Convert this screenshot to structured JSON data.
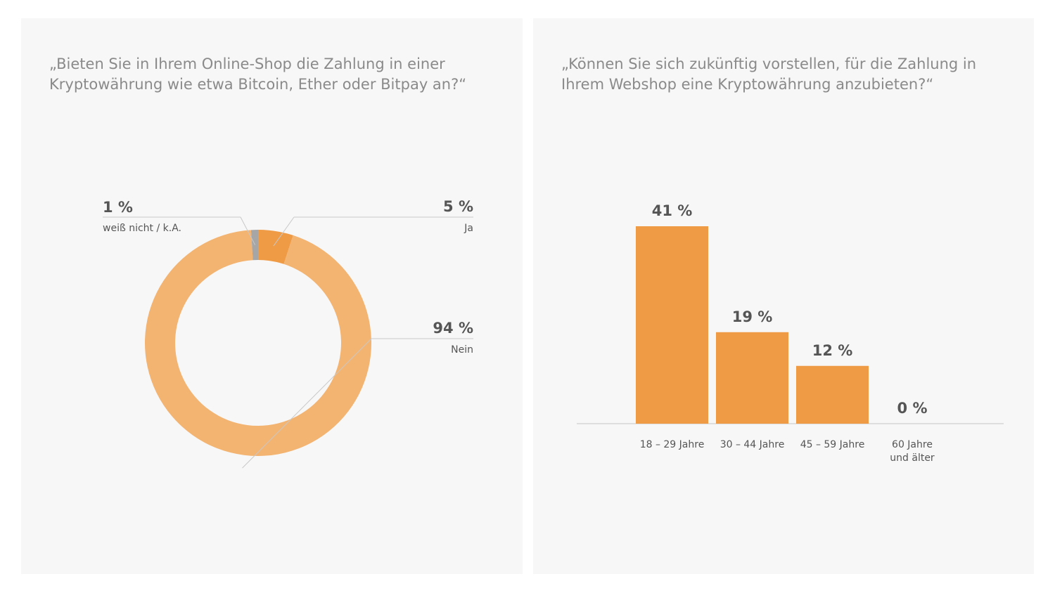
{
  "panels": [
    {
      "question": "„Bieten Sie in Ihrem Online-Shop die Zahlung in einer Kryptowährung wie etwa Bitcoin, Ether oder Bitpay an?“"
    },
    {
      "question": "„Können Sie sich zukünftig vorstellen, für die Zahlung in Ihrem Webshop eine Kryptowährung anzubieten?“"
    }
  ],
  "chart_data": [
    {
      "type": "pie",
      "variant": "donut",
      "title": "„Bieten Sie in Ihrem Online-Shop die Zahlung in einer Kryptowährung wie etwa Bitcoin, Ether oder Bitpay an?“",
      "slices": [
        {
          "label": "Ja",
          "value": 5,
          "display": "5 %",
          "color": "#ef9a45"
        },
        {
          "label": "Nein",
          "value": 94,
          "display": "94 %",
          "color": "#f3b371"
        },
        {
          "label": "weiß nicht / k.A.",
          "value": 1,
          "display": "1 %",
          "color": "#a6a6a6"
        }
      ]
    },
    {
      "type": "bar",
      "title": "„Können Sie sich zukünftig vorstellen, für die Zahlung in Ihrem Webshop eine Kryptowährung anzubieten?“",
      "categories": [
        [
          "18 – 29 Jahre"
        ],
        [
          "30 – 44 Jahre"
        ],
        [
          "45 – 59 Jahre"
        ],
        [
          "60 Jahre",
          "und älter"
        ]
      ],
      "values": [
        41,
        19,
        12,
        0
      ],
      "value_labels": [
        "41 %",
        "19 %",
        "12 %",
        "0 %"
      ],
      "color": "#ef9a45",
      "ylim": [
        0,
        41
      ],
      "grid": false
    }
  ]
}
